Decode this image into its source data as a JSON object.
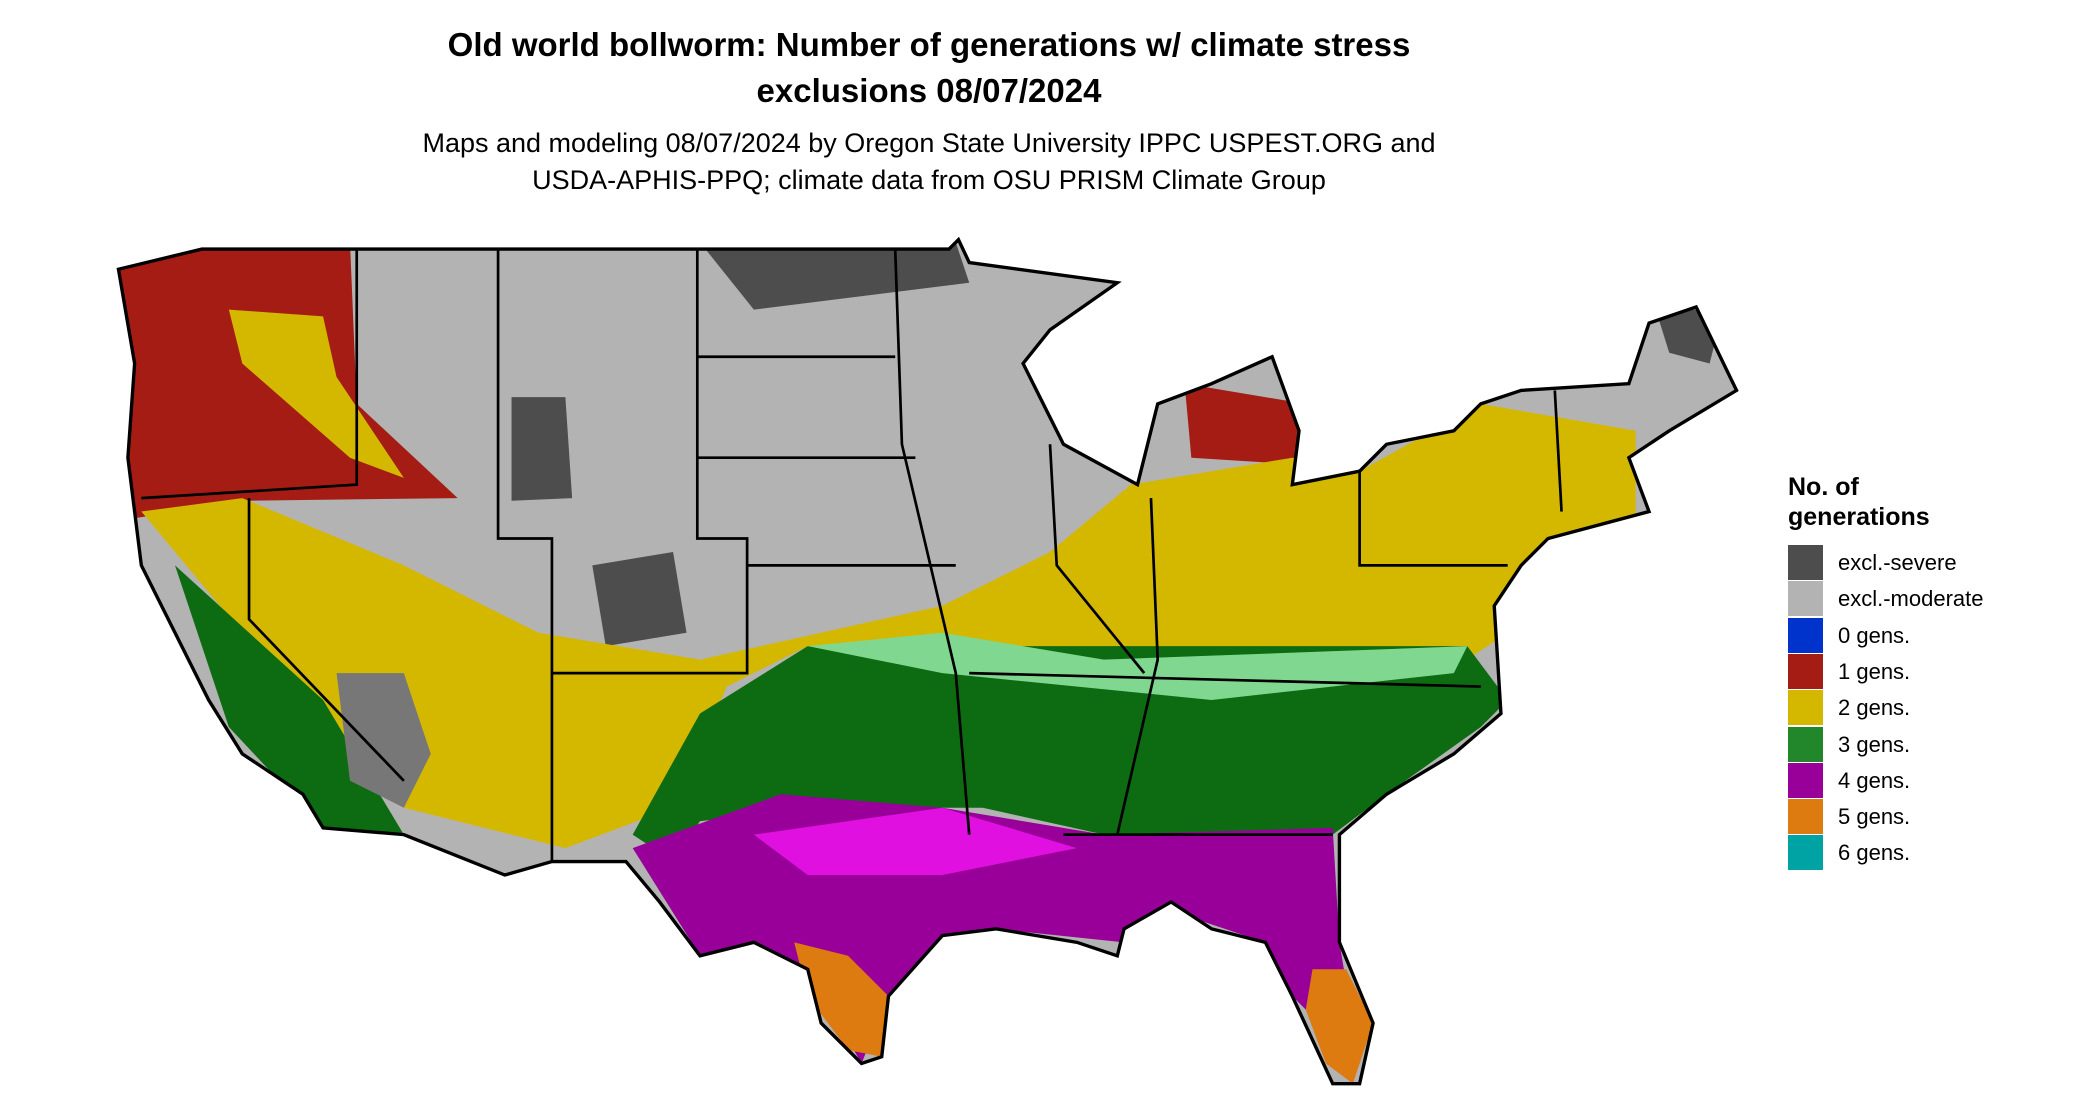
{
  "title_lines": [
    "Old world bollworm: Number of generations w/ climate stress",
    "exclusions 08/07/2024"
  ],
  "subtitle_lines": [
    "Maps and modeling 08/07/2024 by Oregon State University IPPC USPEST.ORG and",
    "USDA-APHIS-PPQ; climate data from OSU PRISM Climate Group"
  ],
  "legend": {
    "title": "No. of generations",
    "items": [
      {
        "label": "excl.-severe",
        "color": "#4d4d4d"
      },
      {
        "label": "excl.-moderate",
        "color": "#b3b3b3"
      },
      {
        "label": "0 gens.",
        "color": "#0033cc"
      },
      {
        "label": "1 gens.",
        "color": "#a51c14"
      },
      {
        "label": "2 gens.",
        "color": "#d4b800"
      },
      {
        "label": "3 gens.",
        "color": "#22862a"
      },
      {
        "label": "4 gens.",
        "color": "#990099"
      },
      {
        "label": "5 gens.",
        "color": "#dd7a10"
      },
      {
        "label": "6 gens.",
        "color": "#00a3a3"
      }
    ]
  }
}
